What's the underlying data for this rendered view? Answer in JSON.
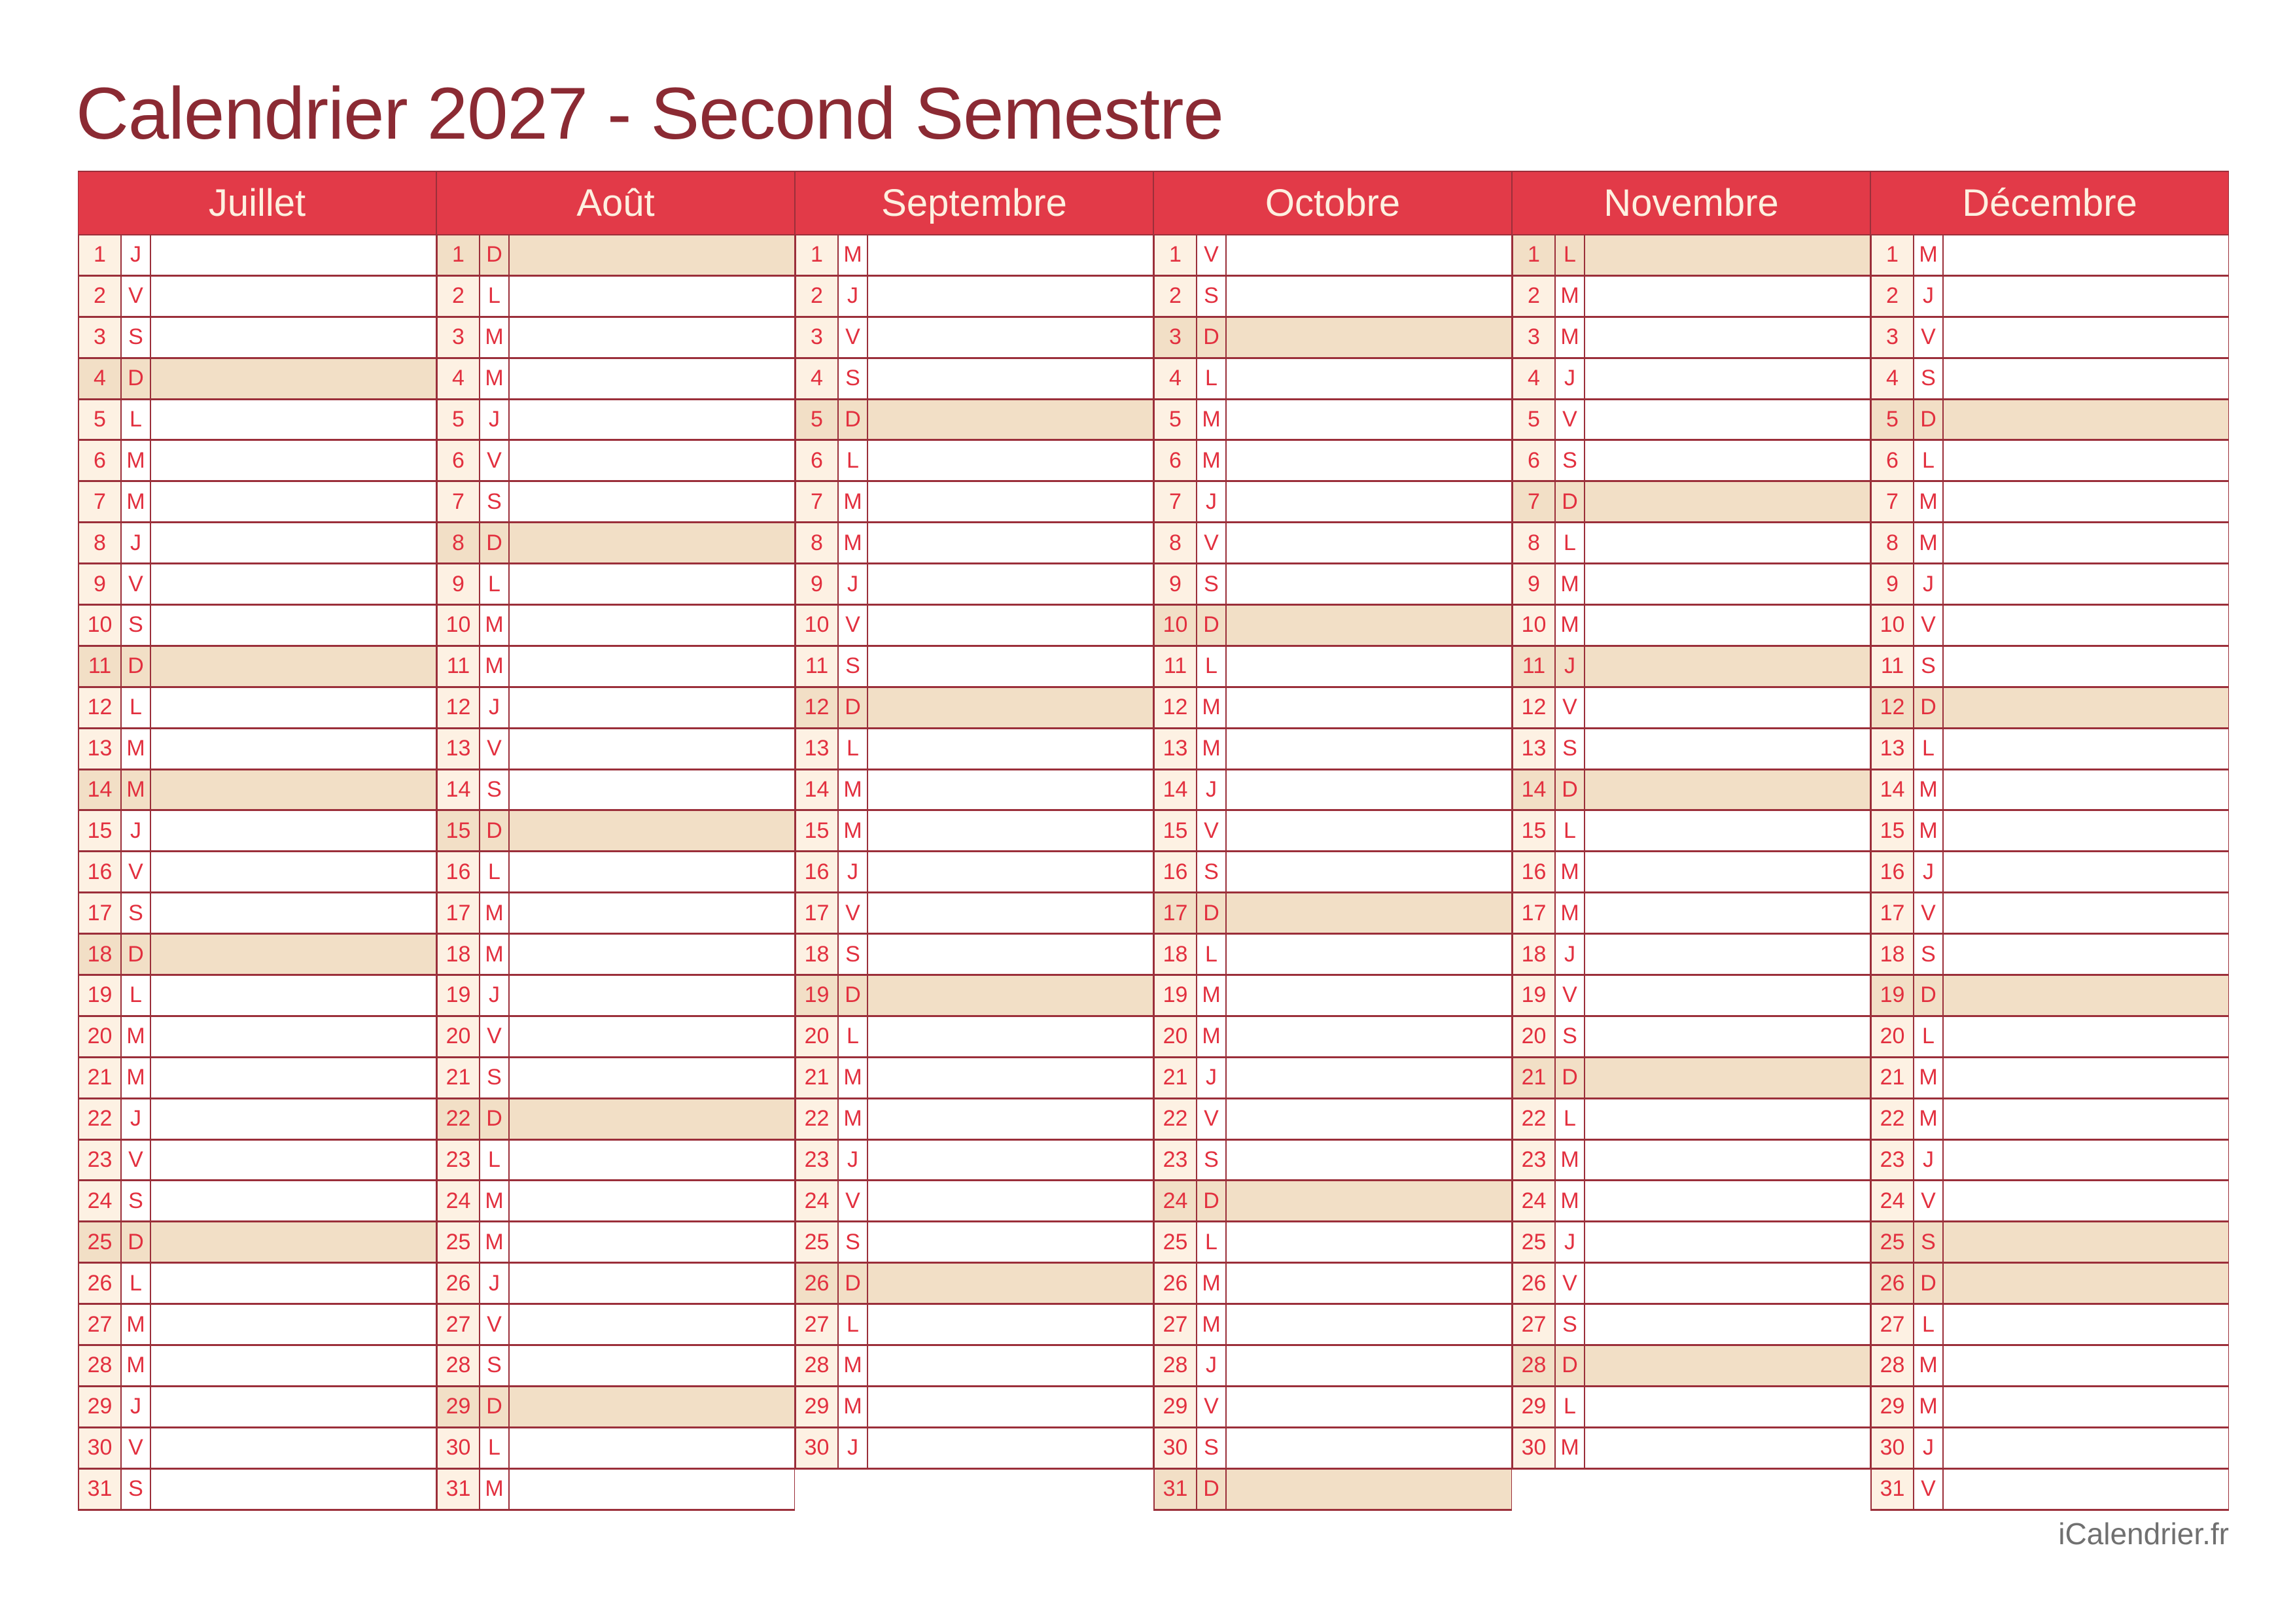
{
  "title": "Calendrier 2027 - Second Semestre",
  "footer": "iCalendrier.fr",
  "colors": {
    "title": "#8b2a33",
    "header": "#e23a48",
    "grid": "#9b2f3a",
    "text": "#e2303f",
    "shaded": "#f2dfc6",
    "day_number_bg": "#fdf1e3"
  },
  "months": [
    {
      "name": "Juillet",
      "days": [
        "J",
        "V",
        "S",
        "D",
        "L",
        "M",
        "M",
        "J",
        "V",
        "S",
        "D",
        "L",
        "M",
        "M",
        "J",
        "V",
        "S",
        "D",
        "L",
        "M",
        "M",
        "J",
        "V",
        "S",
        "D",
        "L",
        "M",
        "M",
        "J",
        "V",
        "S"
      ],
      "shaded": [
        4,
        11,
        14,
        18,
        25
      ]
    },
    {
      "name": "Août",
      "days": [
        "D",
        "L",
        "M",
        "M",
        "J",
        "V",
        "S",
        "D",
        "L",
        "M",
        "M",
        "J",
        "V",
        "S",
        "D",
        "L",
        "M",
        "M",
        "J",
        "V",
        "S",
        "D",
        "L",
        "M",
        "M",
        "J",
        "V",
        "S",
        "D",
        "L",
        "M"
      ],
      "shaded": [
        1,
        8,
        15,
        22,
        29
      ]
    },
    {
      "name": "Septembre",
      "days": [
        "M",
        "J",
        "V",
        "S",
        "D",
        "L",
        "M",
        "M",
        "J",
        "V",
        "S",
        "D",
        "L",
        "M",
        "M",
        "J",
        "V",
        "S",
        "D",
        "L",
        "M",
        "M",
        "J",
        "V",
        "S",
        "D",
        "L",
        "M",
        "M",
        "J"
      ],
      "shaded": [
        5,
        12,
        19,
        26
      ]
    },
    {
      "name": "Octobre",
      "days": [
        "V",
        "S",
        "D",
        "L",
        "M",
        "M",
        "J",
        "V",
        "S",
        "D",
        "L",
        "M",
        "M",
        "J",
        "V",
        "S",
        "D",
        "L",
        "M",
        "M",
        "J",
        "V",
        "S",
        "D",
        "L",
        "M",
        "M",
        "J",
        "V",
        "S",
        "D"
      ],
      "shaded": [
        3,
        10,
        17,
        24,
        31
      ]
    },
    {
      "name": "Novembre",
      "days": [
        "L",
        "M",
        "M",
        "J",
        "V",
        "S",
        "D",
        "L",
        "M",
        "M",
        "J",
        "V",
        "S",
        "D",
        "L",
        "M",
        "M",
        "J",
        "V",
        "S",
        "D",
        "L",
        "M",
        "M",
        "J",
        "V",
        "S",
        "D",
        "L",
        "M"
      ],
      "shaded": [
        1,
        7,
        11,
        14,
        21,
        28
      ]
    },
    {
      "name": "Décembre",
      "days": [
        "M",
        "J",
        "V",
        "S",
        "D",
        "L",
        "M",
        "M",
        "J",
        "V",
        "S",
        "D",
        "L",
        "M",
        "M",
        "J",
        "V",
        "S",
        "D",
        "L",
        "M",
        "M",
        "J",
        "V",
        "S",
        "D",
        "L",
        "M",
        "M",
        "J",
        "V"
      ],
      "shaded": [
        5,
        12,
        19,
        25,
        26
      ]
    }
  ]
}
